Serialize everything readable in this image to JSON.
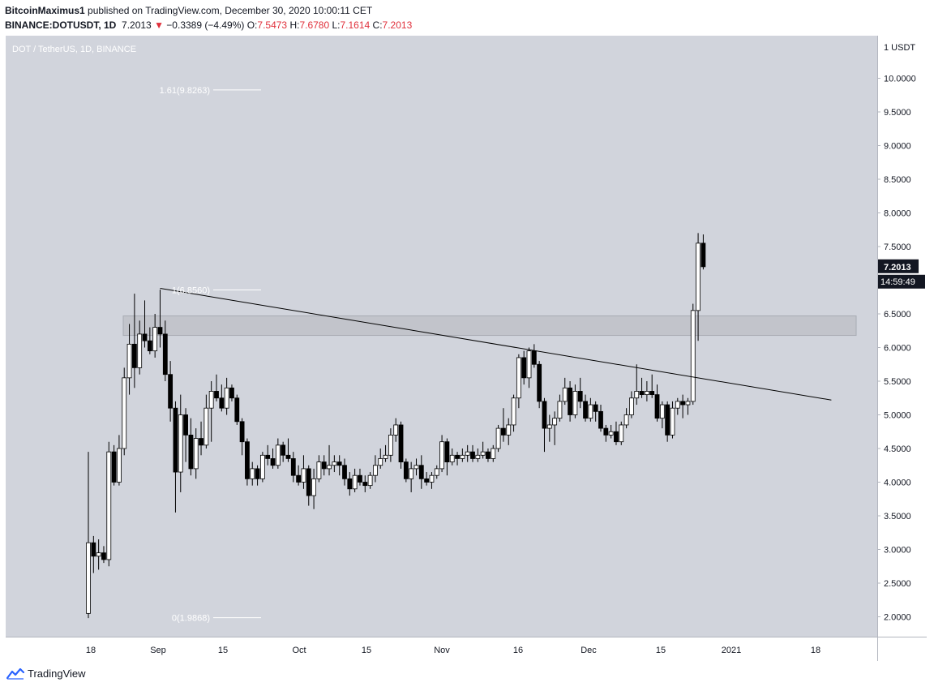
{
  "header": {
    "author": "BitcoinMaximus1",
    "published": "published on TradingView.com, December 30, 2020 10:00:11 CET",
    "symbol": "BINANCE:DOTUSDT, 1D",
    "last": "7.2013",
    "arrow": "▼",
    "change": "−0.3389 (−4.49%)",
    "o_label": "O:",
    "o_val": "7.5473",
    "h_label": "H:",
    "h_val": "7.6780",
    "l_label": "L:",
    "l_val": "7.1614",
    "c_label": "C:",
    "c_val": "7.2013"
  },
  "footer": {
    "brand": "TradingView"
  },
  "colors": {
    "background": "#d1d4dc",
    "candle_up": "#ffffff",
    "candle_down": "#000000",
    "down_text": "#e0303b",
    "zone": "#c2c4cb",
    "label_bg": "#131722"
  },
  "chart_data": {
    "type": "candlestick",
    "title": "DOT / TetherUS, 1D, BINANCE",
    "currency_label": "1 USDT",
    "ylim": [
      1.85,
      10.5
    ],
    "y_ticks": [
      "10.0000",
      "9.5000",
      "9.0000",
      "8.5000",
      "8.0000",
      "7.5000",
      "7.0000",
      "6.5000",
      "6.0000",
      "5.5000",
      "5.0000",
      "4.5000",
      "4.0000",
      "3.5000",
      "3.0000",
      "2.5000",
      "2.0000"
    ],
    "x_ticks": [
      "18",
      "Sep",
      "15",
      "Oct",
      "15",
      "Nov",
      "16",
      "Dec",
      "15",
      "2021",
      "18"
    ],
    "last_price_label": "7.2013",
    "countdown_label": "14:59:49",
    "ohlc": [
      [
        2.05,
        4.45,
        1.98,
        3.1
      ],
      [
        3.1,
        3.2,
        2.65,
        2.9
      ],
      [
        2.9,
        3.15,
        2.7,
        2.95
      ],
      [
        2.95,
        3.05,
        2.8,
        2.85
      ],
      [
        2.85,
        4.6,
        2.75,
        4.45
      ],
      [
        4.45,
        4.55,
        3.95,
        4.0
      ],
      [
        4.0,
        4.7,
        3.95,
        4.5
      ],
      [
        4.5,
        5.7,
        4.4,
        5.55
      ],
      [
        5.55,
        6.35,
        5.3,
        6.05
      ],
      [
        6.05,
        6.8,
        5.4,
        5.7
      ],
      [
        5.7,
        6.4,
        5.6,
        6.2
      ],
      [
        6.2,
        6.7,
        6.0,
        6.1
      ],
      [
        6.1,
        6.3,
        5.9,
        5.95
      ],
      [
        5.95,
        6.5,
        5.85,
        6.3
      ],
      [
        6.3,
        6.86,
        6.0,
        6.2
      ],
      [
        6.2,
        6.4,
        5.5,
        5.6
      ],
      [
        5.6,
        5.8,
        4.9,
        5.1
      ],
      [
        5.1,
        5.2,
        3.55,
        4.15
      ],
      [
        4.15,
        5.3,
        3.85,
        5.0
      ],
      [
        5.0,
        5.1,
        4.3,
        4.7
      ],
      [
        4.7,
        4.95,
        4.1,
        4.2
      ],
      [
        4.2,
        4.8,
        4.05,
        4.65
      ],
      [
        4.65,
        4.9,
        4.4,
        4.55
      ],
      [
        4.55,
        5.3,
        4.5,
        5.1
      ],
      [
        5.1,
        5.5,
        4.6,
        5.35
      ],
      [
        5.35,
        5.6,
        5.2,
        5.25
      ],
      [
        5.25,
        5.45,
        5.05,
        5.1
      ],
      [
        5.1,
        5.55,
        5.0,
        5.4
      ],
      [
        5.4,
        5.45,
        5.2,
        5.25
      ],
      [
        5.25,
        5.3,
        4.85,
        4.9
      ],
      [
        4.9,
        4.95,
        4.4,
        4.6
      ],
      [
        4.6,
        4.65,
        3.95,
        4.05
      ],
      [
        4.05,
        4.3,
        3.95,
        4.2
      ],
      [
        4.2,
        4.25,
        3.95,
        4.05
      ],
      [
        4.05,
        4.45,
        4.0,
        4.4
      ],
      [
        4.4,
        4.55,
        4.25,
        4.35
      ],
      [
        4.35,
        4.5,
        4.2,
        4.25
      ],
      [
        4.25,
        4.65,
        4.2,
        4.55
      ],
      [
        4.55,
        4.6,
        4.3,
        4.4
      ],
      [
        4.4,
        4.65,
        4.3,
        4.35
      ],
      [
        4.35,
        4.45,
        4.0,
        4.1
      ],
      [
        4.1,
        4.25,
        3.95,
        4.0
      ],
      [
        4.0,
        4.4,
        3.9,
        4.2
      ],
      [
        4.2,
        4.25,
        3.65,
        3.8
      ],
      [
        3.8,
        4.2,
        3.6,
        4.05
      ],
      [
        4.05,
        4.4,
        4.0,
        4.3
      ],
      [
        4.3,
        4.4,
        4.1,
        4.2
      ],
      [
        4.2,
        4.55,
        4.1,
        4.25
      ],
      [
        4.25,
        4.4,
        4.15,
        4.3
      ],
      [
        4.3,
        4.4,
        4.1,
        4.25
      ],
      [
        4.25,
        4.35,
        3.95,
        4.05
      ],
      [
        4.05,
        4.15,
        3.8,
        3.9
      ],
      [
        3.9,
        4.2,
        3.85,
        4.1
      ],
      [
        4.1,
        4.2,
        3.95,
        4.0
      ],
      [
        4.0,
        4.1,
        3.85,
        3.95
      ],
      [
        3.95,
        4.15,
        3.9,
        4.1
      ],
      [
        4.1,
        4.4,
        4.0,
        4.25
      ],
      [
        4.25,
        4.5,
        4.2,
        4.35
      ],
      [
        4.35,
        4.55,
        4.3,
        4.4
      ],
      [
        4.4,
        4.8,
        4.3,
        4.7
      ],
      [
        4.7,
        4.95,
        4.6,
        4.85
      ],
      [
        4.85,
        4.9,
        4.2,
        4.3
      ],
      [
        4.3,
        4.35,
        4.0,
        4.05
      ],
      [
        4.05,
        4.3,
        3.85,
        4.2
      ],
      [
        4.2,
        4.35,
        4.1,
        4.25
      ],
      [
        4.25,
        4.4,
        3.9,
        4.05
      ],
      [
        4.05,
        4.15,
        3.95,
        4.0
      ],
      [
        4.0,
        4.15,
        3.9,
        4.1
      ],
      [
        4.1,
        4.25,
        4.05,
        4.2
      ],
      [
        4.2,
        4.7,
        4.15,
        4.6
      ],
      [
        4.6,
        4.65,
        4.1,
        4.3
      ],
      [
        4.3,
        4.5,
        4.25,
        4.4
      ],
      [
        4.4,
        4.45,
        4.25,
        4.35
      ],
      [
        4.35,
        4.5,
        4.3,
        4.4
      ],
      [
        4.4,
        4.55,
        4.3,
        4.45
      ],
      [
        4.45,
        4.55,
        4.3,
        4.35
      ],
      [
        4.35,
        4.5,
        4.3,
        4.4
      ],
      [
        4.4,
        4.6,
        4.35,
        4.45
      ],
      [
        4.45,
        4.5,
        4.3,
        4.35
      ],
      [
        4.35,
        4.55,
        4.3,
        4.5
      ],
      [
        4.5,
        4.85,
        4.45,
        4.8
      ],
      [
        4.8,
        5.1,
        4.6,
        4.7
      ],
      [
        4.7,
        4.95,
        4.55,
        4.85
      ],
      [
        4.85,
        5.3,
        4.75,
        5.25
      ],
      [
        5.25,
        5.9,
        5.1,
        5.85
      ],
      [
        5.85,
        5.95,
        5.45,
        5.55
      ],
      [
        5.55,
        6.0,
        5.4,
        5.95
      ],
      [
        5.95,
        6.05,
        5.7,
        5.75
      ],
      [
        5.75,
        5.8,
        5.1,
        5.2
      ],
      [
        5.2,
        5.25,
        4.45,
        4.8
      ],
      [
        4.8,
        5.0,
        4.6,
        4.85
      ],
      [
        4.85,
        5.05,
        4.55,
        4.95
      ],
      [
        4.95,
        5.3,
        4.9,
        5.2
      ],
      [
        5.2,
        5.55,
        5.15,
        5.4
      ],
      [
        5.4,
        5.5,
        4.9,
        5.0
      ],
      [
        5.0,
        5.45,
        4.95,
        5.35
      ],
      [
        5.35,
        5.55,
        5.1,
        5.2
      ],
      [
        5.2,
        5.3,
        4.9,
        4.95
      ],
      [
        4.95,
        5.25,
        4.9,
        5.15
      ],
      [
        5.15,
        5.2,
        4.9,
        5.05
      ],
      [
        5.05,
        5.15,
        4.75,
        4.8
      ],
      [
        4.8,
        4.85,
        4.6,
        4.7
      ],
      [
        4.7,
        4.85,
        4.65,
        4.75
      ],
      [
        4.75,
        4.9,
        4.55,
        4.6
      ],
      [
        4.6,
        4.9,
        4.55,
        4.85
      ],
      [
        4.85,
        5.1,
        4.8,
        5.0
      ],
      [
        5.0,
        5.35,
        4.95,
        5.25
      ],
      [
        5.25,
        5.75,
        5.15,
        5.35
      ],
      [
        5.35,
        5.55,
        5.25,
        5.3
      ],
      [
        5.3,
        5.5,
        5.2,
        5.35
      ],
      [
        5.35,
        5.6,
        5.25,
        5.3
      ],
      [
        5.3,
        5.45,
        4.9,
        4.95
      ],
      [
        4.95,
        5.2,
        4.8,
        5.15
      ],
      [
        5.15,
        5.2,
        4.6,
        4.7
      ],
      [
        4.7,
        5.2,
        4.65,
        5.1
      ],
      [
        5.1,
        5.25,
        5.0,
        5.2
      ],
      [
        5.2,
        5.3,
        4.95,
        5.15
      ],
      [
        5.15,
        5.25,
        5.0,
        5.2
      ],
      [
        5.2,
        6.65,
        5.15,
        6.55
      ],
      [
        6.55,
        7.7,
        6.1,
        7.55
      ],
      [
        7.55,
        7.68,
        7.16,
        7.2
      ]
    ],
    "zone": {
      "from": 6.18,
      "to": 6.47
    },
    "trendline": {
      "from": [
        14,
        6.88
      ],
      "to": [
        145,
        5.22
      ]
    },
    "fib_levels": [
      {
        "label": "1.61(9.8263)",
        "value": 9.8263
      },
      {
        "label": "1(6.8560)",
        "value": 6.856
      },
      {
        "label": "0(1.9868)",
        "value": 1.9868
      }
    ]
  }
}
